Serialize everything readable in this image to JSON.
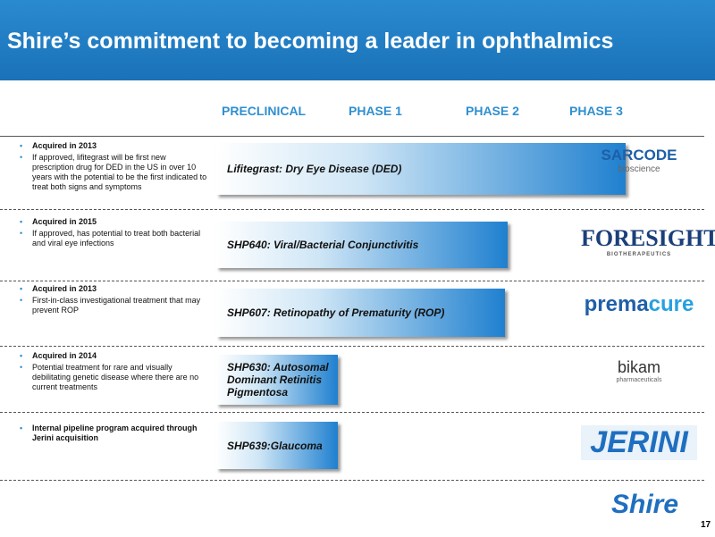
{
  "header": {
    "title": "Shire’s commitment to becoming a leader in ophthalmics"
  },
  "phases": [
    "PRECLINICAL",
    "PHASE 1",
    "PHASE 2",
    "PHASE 3"
  ],
  "rows": [
    {
      "bullets": [
        "Acquired in 2013",
        "If approved, lifitegrast will be first new prescription drug for DED in the US in over 10 years with the potential to be the first indicated to treat both signs and symptoms"
      ],
      "program": "Lifitegrast: Dry Eye Disease (DED)",
      "logo": [
        "SARCODE",
        "bioscience"
      ]
    },
    {
      "bullets": [
        "Acquired in 2015",
        "If approved, has potential to treat both bacterial and viral eye infections"
      ],
      "program": "SHP640: Viral/Bacterial Conjunctivitis",
      "logo": [
        "FORESIGHT",
        "BIOTHERAPEUTICS"
      ]
    },
    {
      "bullets": [
        "Acquired in 2013",
        "First-in-class investigational treatment that may prevent ROP"
      ],
      "program": "SHP607: Retinopathy of Prematurity (ROP)",
      "logo": [
        "prema",
        "cure"
      ]
    },
    {
      "bullets": [
        "Acquired in 2014",
        "Potential treatment for rare and visually debilitating genetic disease where there are no current treatments"
      ],
      "program": "SHP630: Autosomal Dominant Retinitis Pigmentosa",
      "logo": [
        "bikam",
        "pharmaceuticals"
      ]
    },
    {
      "bullets": [
        "Internal pipeline program acquired through Jerini acquisition"
      ],
      "program": "SHP639:Glaucoma",
      "logo": [
        "JERINI"
      ]
    }
  ],
  "footer": {
    "logo": "Shire",
    "page": "17"
  }
}
